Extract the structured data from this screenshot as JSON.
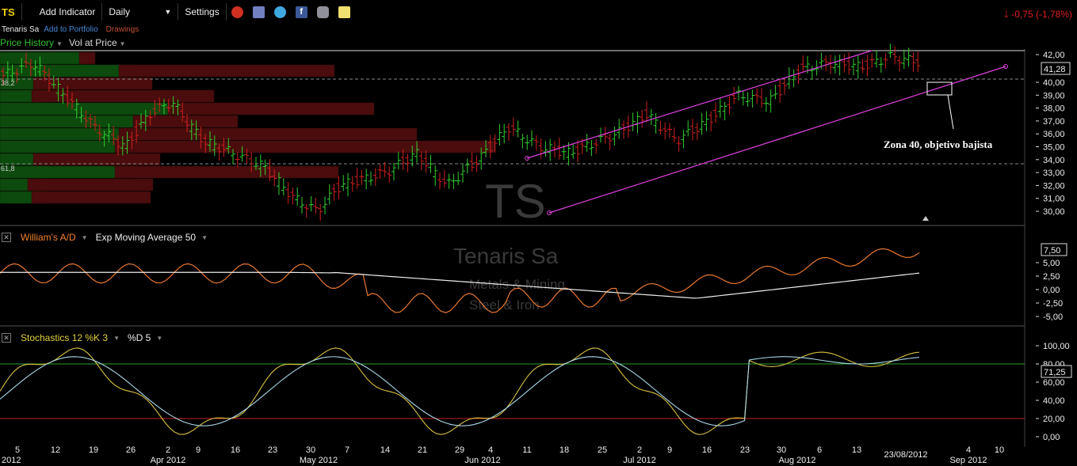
{
  "toolbar": {
    "ticker": "TS",
    "add_indicator": "Add Indicator",
    "period": "Daily",
    "settings": "Settings",
    "change_text": "-0,75 (-1,78%)",
    "icons": [
      "alarm-clock-icon",
      "portfolio-icon",
      "twitter-icon",
      "facebook-icon",
      "camera-icon",
      "note-icon"
    ]
  },
  "subbar": {
    "company": "Tenaris Sa",
    "add_to_portfolio": "Add to Portfolio",
    "drawings": "Drawings"
  },
  "history": {
    "price_history": "Price History",
    "vol_at_price": "Vol at Price"
  },
  "watermark": {
    "ticker": "TS",
    "company": "Tenaris Sa",
    "sector": "Metals & Mining",
    "industry": "Steel & Iron"
  },
  "price_panel": {
    "fib_upper": "38,2",
    "fib_lower": "61,8",
    "last_price": "41,28",
    "annotation": "Zona 40, objetivo bajista",
    "y_ticks": [
      "42,00",
      "40,00",
      "39,00",
      "38,00",
      "37,00",
      "36,00",
      "35,00",
      "34,00",
      "33,00",
      "32,00",
      "31,00",
      "30,00"
    ]
  },
  "williams_panel": {
    "name": "William's A/D",
    "ma_name": "Exp Moving Average 50",
    "last_value": "7,50",
    "y_ticks": [
      "5,00",
      "2,50",
      "0,00",
      "-2,50",
      "-5,00"
    ]
  },
  "stoch_panel": {
    "name": "Stochastics 12 %K 3",
    "d_name": "%D 5",
    "last_value": "71,25",
    "y_ticks": [
      "100,00",
      "80,00",
      "60,00",
      "40,00",
      "20,00",
      "0,00"
    ]
  },
  "dates": {
    "days": [
      "5",
      "12",
      "19",
      "26",
      "2",
      "9",
      "16",
      "23",
      "30",
      "7",
      "14",
      "21",
      "29",
      "4",
      "11",
      "18",
      "25",
      "2",
      "9",
      "16",
      "23",
      "30",
      "6",
      "13",
      "4",
      "10"
    ],
    "months": [
      "Apr 2012",
      "May 2012",
      "Jun 2012",
      "Jul 2012",
      "Aug 2012",
      "Sep 2012"
    ],
    "left_partial": "2012",
    "cursor_date": "23/08/2012"
  },
  "colors": {
    "up": "#30d030",
    "down": "#d02020",
    "channel": "#e040e0",
    "williams": "#e87830",
    "stoch_k": "#d8c040",
    "stoch_d": "#a8d8e8"
  }
}
